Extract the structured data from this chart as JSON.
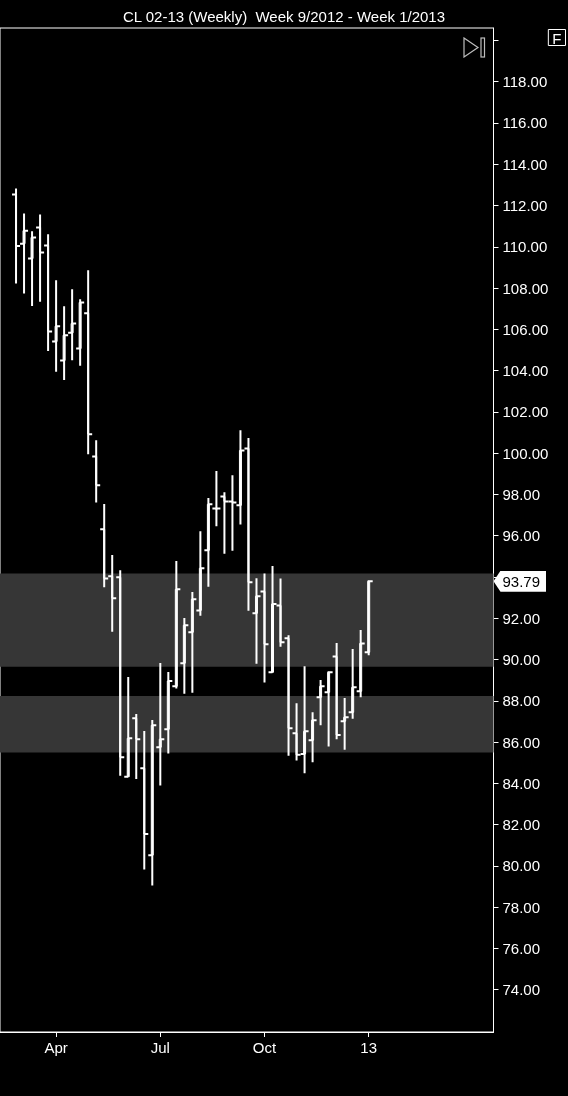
{
  "chart_data": {
    "type": "candlestick",
    "title": "CL 02-13 (Weekly)  Week 9/2012 - Week 1/2013",
    "color": "#ffffff",
    "x": [
      "2012-02-27",
      "2012-03-05",
      "2012-03-12",
      "2012-03-19",
      "2012-03-26",
      "2012-04-02",
      "2012-04-09",
      "2012-04-16",
      "2012-04-23",
      "2012-04-30",
      "2012-05-07",
      "2012-05-14",
      "2012-05-21",
      "2012-05-28",
      "2012-06-04",
      "2012-06-11",
      "2012-06-18",
      "2012-06-25",
      "2012-07-02",
      "2012-07-09",
      "2012-07-16",
      "2012-07-23",
      "2012-07-30",
      "2012-08-06",
      "2012-08-13",
      "2012-08-20",
      "2012-08-27",
      "2012-09-03",
      "2012-09-10",
      "2012-09-17",
      "2012-09-24",
      "2012-10-01",
      "2012-10-08",
      "2012-10-15",
      "2012-10-22",
      "2012-10-29",
      "2012-11-05",
      "2012-11-12",
      "2012-11-19",
      "2012-11-26",
      "2012-12-03",
      "2012-12-10",
      "2012-12-17",
      "2012-12-24",
      "2012-12-31"
    ],
    "ohlc": [
      [
        112.53,
        112.82,
        108.22,
        110.04
      ],
      [
        110.15,
        111.61,
        107.73,
        110.78
      ],
      [
        109.43,
        110.75,
        107.13,
        110.45
      ],
      [
        110.93,
        111.56,
        107.33,
        109.72
      ],
      [
        110.06,
        110.61,
        104.95,
        105.89
      ],
      [
        105.41,
        108.38,
        103.94,
        106.15
      ],
      [
        104.49,
        107.12,
        103.54,
        105.71
      ],
      [
        105.83,
        107.94,
        104.5,
        106.28
      ],
      [
        105.07,
        107.46,
        104.23,
        107.3
      ],
      [
        106.78,
        108.86,
        99.95,
        100.92
      ],
      [
        99.84,
        100.63,
        97.61,
        98.44
      ],
      [
        96.31,
        97.53,
        93.5,
        93.93
      ],
      [
        94.03,
        95.06,
        91.35,
        92.97
      ],
      [
        93.98,
        94.33,
        84.37,
        85.26
      ],
      [
        84.32,
        89.15,
        84.32,
        86.18
      ],
      [
        87.15,
        87.36,
        84.21,
        86.14
      ],
      [
        84.73,
        86.54,
        79.82,
        81.54
      ],
      [
        80.52,
        87.07,
        79.05,
        86.81
      ],
      [
        85.75,
        89.83,
        83.89,
        86.14
      ],
      [
        86.62,
        89.39,
        85.44,
        88.96
      ],
      [
        88.7,
        94.77,
        88.59,
        93.4
      ],
      [
        89.82,
        92.01,
        88.34,
        91.66
      ],
      [
        91.32,
        93.27,
        88.39,
        92.92
      ],
      [
        92.38,
        96.22,
        92.12,
        94.42
      ],
      [
        95.29,
        97.82,
        93.53,
        97.52
      ],
      [
        97.32,
        99.13,
        96.46,
        97.32
      ],
      [
        97.9,
        98.11,
        95.12,
        97.66
      ],
      [
        97.66,
        98.93,
        95.27,
        97.61
      ],
      [
        97.47,
        101.11,
        96.54,
        100.13
      ],
      [
        100.23,
        100.73,
        92.36,
        93.74
      ],
      [
        92.24,
        93.94,
        89.8,
        93.07
      ],
      [
        93.3,
        94.17,
        88.88,
        90.74
      ],
      [
        89.38,
        94.53,
        89.38,
        92.69
      ],
      [
        92.62,
        93.93,
        90.62,
        90.83
      ],
      [
        91.03,
        91.17,
        85.34,
        86.67
      ],
      [
        86.43,
        87.88,
        85.1,
        85.38
      ],
      [
        85.42,
        89.67,
        84.49,
        86.52
      ],
      [
        86.09,
        87.44,
        85.02,
        87.06
      ],
      [
        88.17,
        89.01,
        86.81,
        88.7
      ],
      [
        88.41,
        89.43,
        85.78,
        89.38
      ],
      [
        90.15,
        90.8,
        86.14,
        86.34
      ],
      [
        87.01,
        88.14,
        85.63,
        87.2
      ],
      [
        87.44,
        90.51,
        87.13,
        88.65
      ],
      [
        88.46,
        91.43,
        88.17,
        90.78
      ],
      [
        90.35,
        93.84,
        90.2,
        93.79
      ]
    ],
    "xlim": [
      "2012-02-13",
      "2013-04-19"
    ],
    "xticks": [
      {
        "value": "2012-04-02",
        "label": "Apr"
      },
      {
        "value": "2012-07-02",
        "label": "Jul"
      },
      {
        "value": "2012-10-01",
        "label": "Oct"
      },
      {
        "value": "2012-12-31",
        "label": "13"
      }
    ],
    "ylim": [
      71.95,
      120.6
    ],
    "yticks": [
      {
        "value": 74,
        "label": "74.00"
      },
      {
        "value": 76,
        "label": "76.00"
      },
      {
        "value": 78,
        "label": "78.00"
      },
      {
        "value": 80,
        "label": "80.00"
      },
      {
        "value": 82,
        "label": "82.00"
      },
      {
        "value": 84,
        "label": "84.00"
      },
      {
        "value": 86,
        "label": "86.00"
      },
      {
        "value": 88,
        "label": "88.00"
      },
      {
        "value": 90,
        "label": "90.00"
      },
      {
        "value": 92,
        "label": "92.00"
      },
      {
        "value": 94,
        "label": null
      },
      {
        "value": 96,
        "label": "96.00"
      },
      {
        "value": 98,
        "label": "98.00"
      },
      {
        "value": 100,
        "label": "100.00"
      },
      {
        "value": 102,
        "label": "102.00"
      },
      {
        "value": 104,
        "label": "104.00"
      },
      {
        "value": 106,
        "label": "106.00"
      },
      {
        "value": 108,
        "label": "108.00"
      },
      {
        "value": 110,
        "label": "110.00"
      },
      {
        "value": 112,
        "label": "112.00"
      },
      {
        "value": 114,
        "label": "114.00"
      },
      {
        "value": 116,
        "label": "116.00"
      },
      {
        "value": 118,
        "label": "118.00"
      },
      {
        "value": 120,
        "label": null
      }
    ],
    "bands": [
      {
        "axis": "y",
        "from": 89.65,
        "to": 94.17,
        "color": "#363636"
      },
      {
        "axis": "y",
        "from": 85.49,
        "to": 88.23,
        "color": "#363636"
      }
    ],
    "annotations": [
      "F",
      "93.79"
    ]
  }
}
